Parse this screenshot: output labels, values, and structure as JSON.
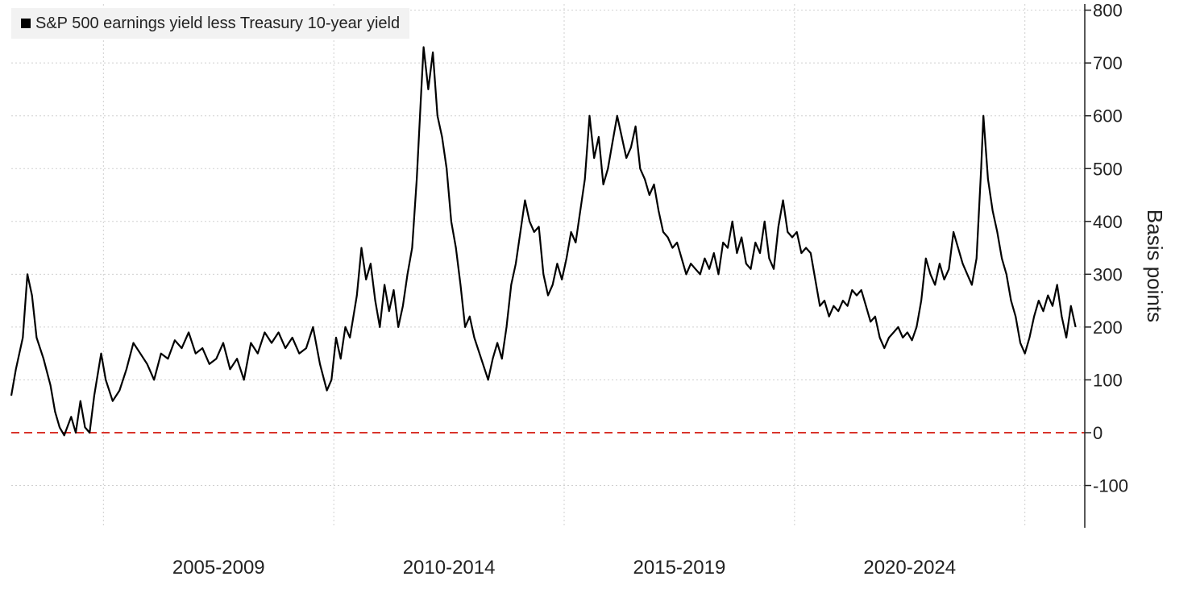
{
  "chart_data": {
    "type": "line",
    "ylabel": "Basis points",
    "ylim": [
      -150,
      820
    ],
    "y_ticks": [
      800,
      700,
      600,
      500,
      400,
      300,
      200,
      100,
      0,
      -100
    ],
    "y_tick_labels": [
      "800",
      "700",
      "600",
      "500",
      "400",
      "300",
      "200",
      "100",
      "0",
      "-100"
    ],
    "x_period_labels": [
      "2005-2009",
      "2010-2014",
      "2015-2019",
      "2020-2024"
    ],
    "x_period_centers": [
      2007.5,
      2012.5,
      2017.5,
      2022.5
    ],
    "x_gridlines": [
      2005,
      2010,
      2015,
      2020,
      2025
    ],
    "xlim": [
      2003.0,
      2026.3
    ],
    "grid": true,
    "legend_position": "top-left",
    "reference_line": {
      "y": 0,
      "color": "#d9342b",
      "style": "dashed"
    },
    "series": [
      {
        "name": "S&P 500 earnings yield less Treasury 10-year yield",
        "color": "#000000",
        "points": [
          [
            2003.0,
            70
          ],
          [
            2003.1,
            120
          ],
          [
            2003.25,
            180
          ],
          [
            2003.35,
            300
          ],
          [
            2003.45,
            260
          ],
          [
            2003.55,
            180
          ],
          [
            2003.7,
            140
          ],
          [
            2003.85,
            90
          ],
          [
            2003.95,
            40
          ],
          [
            2004.05,
            10
          ],
          [
            2004.15,
            -5
          ],
          [
            2004.3,
            30
          ],
          [
            2004.4,
            0
          ],
          [
            2004.5,
            60
          ],
          [
            2004.6,
            10
          ],
          [
            2004.7,
            0
          ],
          [
            2004.8,
            70
          ],
          [
            2004.95,
            150
          ],
          [
            2005.05,
            100
          ],
          [
            2005.2,
            60
          ],
          [
            2005.35,
            80
          ],
          [
            2005.5,
            120
          ],
          [
            2005.65,
            170
          ],
          [
            2005.8,
            150
          ],
          [
            2005.95,
            130
          ],
          [
            2006.1,
            100
          ],
          [
            2006.25,
            150
          ],
          [
            2006.4,
            140
          ],
          [
            2006.55,
            175
          ],
          [
            2006.7,
            160
          ],
          [
            2006.85,
            190
          ],
          [
            2007.0,
            150
          ],
          [
            2007.15,
            160
          ],
          [
            2007.3,
            130
          ],
          [
            2007.45,
            140
          ],
          [
            2007.6,
            170
          ],
          [
            2007.75,
            120
          ],
          [
            2007.9,
            140
          ],
          [
            2008.05,
            100
          ],
          [
            2008.2,
            170
          ],
          [
            2008.35,
            150
          ],
          [
            2008.5,
            190
          ],
          [
            2008.65,
            170
          ],
          [
            2008.8,
            190
          ],
          [
            2008.95,
            160
          ],
          [
            2009.1,
            180
          ],
          [
            2009.25,
            150
          ],
          [
            2009.4,
            160
          ],
          [
            2009.55,
            200
          ],
          [
            2009.7,
            130
          ],
          [
            2009.85,
            80
          ],
          [
            2009.95,
            100
          ],
          [
            2010.05,
            180
          ],
          [
            2010.15,
            140
          ],
          [
            2010.25,
            200
          ],
          [
            2010.35,
            180
          ],
          [
            2010.5,
            260
          ],
          [
            2010.6,
            350
          ],
          [
            2010.7,
            290
          ],
          [
            2010.8,
            320
          ],
          [
            2010.9,
            250
          ],
          [
            2011.0,
            200
          ],
          [
            2011.1,
            280
          ],
          [
            2011.2,
            230
          ],
          [
            2011.3,
            270
          ],
          [
            2011.4,
            200
          ],
          [
            2011.5,
            240
          ],
          [
            2011.6,
            300
          ],
          [
            2011.7,
            350
          ],
          [
            2011.8,
            480
          ],
          [
            2011.9,
            650
          ],
          [
            2011.95,
            730
          ],
          [
            2012.05,
            650
          ],
          [
            2012.15,
            720
          ],
          [
            2012.25,
            600
          ],
          [
            2012.35,
            560
          ],
          [
            2012.45,
            500
          ],
          [
            2012.55,
            400
          ],
          [
            2012.65,
            350
          ],
          [
            2012.75,
            280
          ],
          [
            2012.85,
            200
          ],
          [
            2012.95,
            220
          ],
          [
            2013.05,
            180
          ],
          [
            2013.2,
            140
          ],
          [
            2013.35,
            100
          ],
          [
            2013.45,
            140
          ],
          [
            2013.55,
            170
          ],
          [
            2013.65,
            140
          ],
          [
            2013.75,
            200
          ],
          [
            2013.85,
            280
          ],
          [
            2013.95,
            320
          ],
          [
            2014.05,
            380
          ],
          [
            2014.15,
            440
          ],
          [
            2014.25,
            400
          ],
          [
            2014.35,
            380
          ],
          [
            2014.45,
            390
          ],
          [
            2014.55,
            300
          ],
          [
            2014.65,
            260
          ],
          [
            2014.75,
            280
          ],
          [
            2014.85,
            320
          ],
          [
            2014.95,
            290
          ],
          [
            2015.05,
            330
          ],
          [
            2015.15,
            380
          ],
          [
            2015.25,
            360
          ],
          [
            2015.35,
            420
          ],
          [
            2015.45,
            480
          ],
          [
            2015.55,
            600
          ],
          [
            2015.65,
            520
          ],
          [
            2015.75,
            560
          ],
          [
            2015.85,
            470
          ],
          [
            2015.95,
            500
          ],
          [
            2016.05,
            550
          ],
          [
            2016.15,
            600
          ],
          [
            2016.25,
            560
          ],
          [
            2016.35,
            520
          ],
          [
            2016.45,
            540
          ],
          [
            2016.55,
            580
          ],
          [
            2016.65,
            500
          ],
          [
            2016.75,
            480
          ],
          [
            2016.85,
            450
          ],
          [
            2016.95,
            470
          ],
          [
            2017.05,
            420
          ],
          [
            2017.15,
            380
          ],
          [
            2017.25,
            370
          ],
          [
            2017.35,
            350
          ],
          [
            2017.45,
            360
          ],
          [
            2017.55,
            330
          ],
          [
            2017.65,
            300
          ],
          [
            2017.75,
            320
          ],
          [
            2017.85,
            310
          ],
          [
            2017.95,
            300
          ],
          [
            2018.05,
            330
          ],
          [
            2018.15,
            310
          ],
          [
            2018.25,
            340
          ],
          [
            2018.35,
            300
          ],
          [
            2018.45,
            360
          ],
          [
            2018.55,
            350
          ],
          [
            2018.65,
            400
          ],
          [
            2018.75,
            340
          ],
          [
            2018.85,
            370
          ],
          [
            2018.95,
            320
          ],
          [
            2019.05,
            310
          ],
          [
            2019.15,
            360
          ],
          [
            2019.25,
            340
          ],
          [
            2019.35,
            400
          ],
          [
            2019.45,
            330
          ],
          [
            2019.55,
            310
          ],
          [
            2019.65,
            390
          ],
          [
            2019.75,
            440
          ],
          [
            2019.85,
            380
          ],
          [
            2019.95,
            370
          ],
          [
            2020.05,
            380
          ],
          [
            2020.15,
            340
          ],
          [
            2020.25,
            350
          ],
          [
            2020.35,
            340
          ],
          [
            2020.45,
            290
          ],
          [
            2020.55,
            240
          ],
          [
            2020.65,
            250
          ],
          [
            2020.75,
            220
          ],
          [
            2020.85,
            240
          ],
          [
            2020.95,
            230
          ],
          [
            2021.05,
            250
          ],
          [
            2021.15,
            240
          ],
          [
            2021.25,
            270
          ],
          [
            2021.35,
            260
          ],
          [
            2021.45,
            270
          ],
          [
            2021.55,
            240
          ],
          [
            2021.65,
            210
          ],
          [
            2021.75,
            220
          ],
          [
            2021.85,
            180
          ],
          [
            2021.95,
            160
          ],
          [
            2022.05,
            180
          ],
          [
            2022.15,
            190
          ],
          [
            2022.25,
            200
          ],
          [
            2022.35,
            180
          ],
          [
            2022.45,
            190
          ],
          [
            2022.55,
            175
          ],
          [
            2022.65,
            200
          ],
          [
            2022.75,
            250
          ],
          [
            2022.85,
            330
          ],
          [
            2022.95,
            300
          ],
          [
            2023.05,
            280
          ],
          [
            2023.15,
            320
          ],
          [
            2023.25,
            290
          ],
          [
            2023.35,
            310
          ],
          [
            2023.45,
            380
          ],
          [
            2023.55,
            350
          ],
          [
            2023.65,
            320
          ],
          [
            2023.75,
            300
          ],
          [
            2023.85,
            280
          ],
          [
            2023.95,
            330
          ],
          [
            2024.05,
            500
          ],
          [
            2024.1,
            600
          ],
          [
            2024.2,
            480
          ],
          [
            2024.3,
            420
          ],
          [
            2024.4,
            380
          ],
          [
            2024.5,
            330
          ],
          [
            2024.6,
            300
          ],
          [
            2024.7,
            250
          ],
          [
            2024.8,
            220
          ],
          [
            2024.9,
            170
          ],
          [
            2025.0,
            150
          ],
          [
            2025.1,
            180
          ],
          [
            2025.2,
            220
          ],
          [
            2025.3,
            250
          ],
          [
            2025.4,
            230
          ],
          [
            2025.5,
            260
          ],
          [
            2025.6,
            240
          ],
          [
            2025.7,
            280
          ],
          [
            2025.8,
            220
          ],
          [
            2025.9,
            180
          ],
          [
            2026.0,
            240
          ],
          [
            2026.1,
            200
          ]
        ]
      }
    ]
  }
}
